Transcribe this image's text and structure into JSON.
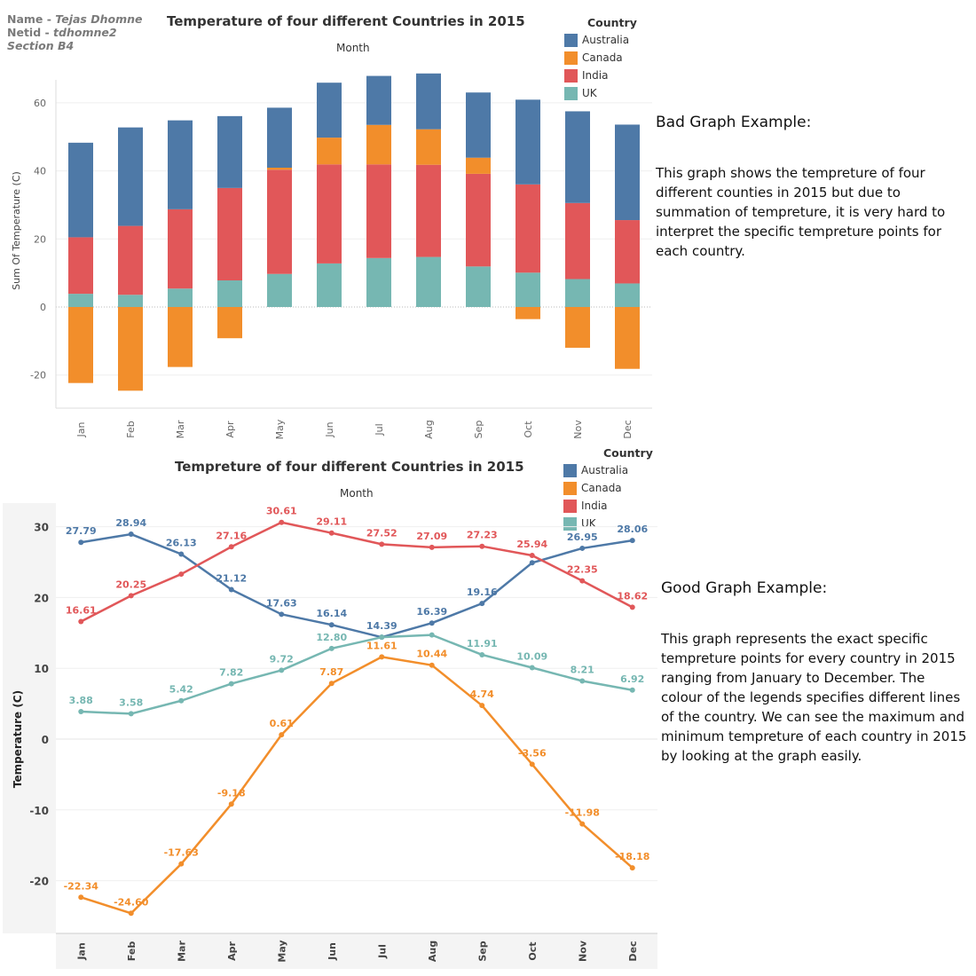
{
  "author": {
    "name_label": "Name - ",
    "name": "Tejas Dhomne",
    "netid_label": "Netid - ",
    "netid": "tdhomne2",
    "section": "Section B4"
  },
  "colors": {
    "Australia": "#4e79a7",
    "Canada": "#f28e2b",
    "India": "#e15759",
    "UK": "#76b7b2"
  },
  "bad_text": {
    "heading": "Bad Graph Example:",
    "body": "This graph shows the tempreture of four different counties in 2015 but due to summation of tempreture, it is very hard to interpret the specific tempreture points for each country."
  },
  "good_text": {
    "heading": "Good Graph Example:",
    "body": "This graph represents the exact specific tempreture points for every country in 2015 ranging from January to December. The colour of the legends specifies different lines of the country. We can see the maximum and minimum tempreture of each country in 2015 by looking at the graph easily."
  },
  "chart_data": [
    {
      "type": "bar",
      "stacked": true,
      "title": "Temperature of four different Countries in 2015",
      "column_header": "Month",
      "xlabel": "",
      "ylabel": "Sum Of Temperature (C)",
      "ylim": [
        -30,
        70
      ],
      "yticks": [
        -20,
        0,
        20,
        40,
        60
      ],
      "legend_title": "Country",
      "legend_position": "top-right",
      "categories": [
        "Jan",
        "Feb",
        "Mar",
        "Apr",
        "May",
        "Jun",
        "Jul",
        "Aug",
        "Sep",
        "Oct",
        "Nov",
        "Dec"
      ],
      "series": [
        {
          "name": "Australia",
          "values": [
            27.79,
            28.94,
            26.13,
            21.12,
            17.63,
            16.14,
            14.39,
            16.39,
            19.16,
            24.9,
            26.95,
            28.06
          ]
        },
        {
          "name": "Canada",
          "values": [
            -22.34,
            -24.6,
            -17.63,
            -9.18,
            0.61,
            7.87,
            11.61,
            10.44,
            4.74,
            -3.56,
            -11.98,
            -18.18
          ]
        },
        {
          "name": "India",
          "values": [
            16.61,
            20.25,
            23.3,
            27.16,
            30.61,
            29.11,
            27.52,
            27.09,
            27.23,
            25.94,
            22.35,
            18.62
          ]
        },
        {
          "name": "UK",
          "values": [
            3.88,
            3.58,
            5.42,
            7.82,
            9.72,
            12.8,
            14.39,
            14.71,
            11.91,
            10.09,
            8.21,
            6.92
          ]
        }
      ]
    },
    {
      "type": "line",
      "title": "Tempreture of four different Countries in 2015",
      "column_header": "Month",
      "xlabel": "",
      "ylabel": "Temperature (C)",
      "ylim": [
        -27,
        33
      ],
      "yticks": [
        -20,
        -10,
        0,
        10,
        20,
        30
      ],
      "legend_title": "Country",
      "legend_position": "top-right",
      "categories": [
        "Jan",
        "Feb",
        "Mar",
        "Apr",
        "May",
        "Jun",
        "Jul",
        "Aug",
        "Sep",
        "Oct",
        "Nov",
        "Dec"
      ],
      "series": [
        {
          "name": "Australia",
          "values": [
            27.79,
            28.94,
            26.13,
            21.12,
            17.63,
            16.14,
            14.39,
            16.39,
            19.16,
            24.9,
            26.95,
            28.06
          ],
          "labels": [
            "27.79",
            "28.94",
            "26.13",
            "21.12",
            "17.63",
            "16.14",
            "14.39",
            "16.39",
            "19.16",
            "",
            "26.95",
            "28.06"
          ]
        },
        {
          "name": "Canada",
          "values": [
            -22.34,
            -24.6,
            -17.63,
            -9.18,
            0.61,
            7.87,
            11.61,
            10.44,
            4.74,
            -3.56,
            -11.98,
            -18.18
          ],
          "labels": [
            "-22.34",
            "-24.60",
            "-17.63",
            "-9.18",
            "0.61",
            "7.87",
            "11.61",
            "10.44",
            "4.74",
            "-3.56",
            "-11.98",
            "-18.18"
          ]
        },
        {
          "name": "India",
          "values": [
            16.61,
            20.25,
            23.3,
            27.16,
            30.61,
            29.11,
            27.52,
            27.09,
            27.23,
            25.94,
            22.35,
            18.62
          ],
          "labels": [
            "16.61",
            "20.25",
            "",
            "27.16",
            "30.61",
            "29.11",
            "27.52",
            "27.09",
            "27.23",
            "25.94",
            "22.35",
            "18.62"
          ]
        },
        {
          "name": "UK",
          "values": [
            3.88,
            3.58,
            5.42,
            7.82,
            9.72,
            12.8,
            14.39,
            14.71,
            11.91,
            10.09,
            8.21,
            6.92
          ],
          "labels": [
            "3.88",
            "3.58",
            "5.42",
            "7.82",
            "9.72",
            "12.80",
            "",
            "",
            "11.91",
            "10.09",
            "8.21",
            "6.92"
          ]
        }
      ]
    }
  ]
}
